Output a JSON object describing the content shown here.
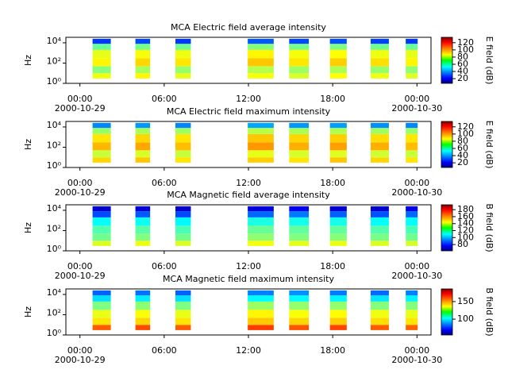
{
  "chart_data": [
    {
      "type": "spectrogram",
      "title": "MCA  Electric field average intensity",
      "y_label": "Hz",
      "colorbar_label": "E field (dB)",
      "colormap": "jet",
      "log_y": true,
      "xlim": [
        -1,
        25
      ],
      "ylim": [
        1,
        35000
      ],
      "clim": [
        7,
        135
      ],
      "xticks": [
        {
          "value": 0,
          "label": "00:00"
        },
        {
          "value": 6,
          "label": "06:00"
        },
        {
          "value": 12,
          "label": "12:00"
        },
        {
          "value": 18,
          "label": "18:00"
        },
        {
          "value": 24,
          "label": "00:00"
        }
      ],
      "date_labels": [
        {
          "value": 0,
          "label": "2000-10-29"
        },
        {
          "value": 24,
          "label": "2000-10-30"
        }
      ],
      "yticks": [
        {
          "value": 1,
          "label": "10⁰"
        },
        {
          "value": 100,
          "label": "10²"
        },
        {
          "value": 10000,
          "label": "10⁴"
        }
      ],
      "cticks": [
        20,
        40,
        60,
        80,
        100,
        120
      ],
      "bins": [
        3,
        10,
        50,
        300,
        2000,
        8000,
        25000
      ],
      "segments": [
        {
          "start": 0.9,
          "end": 2.2,
          "values": [
            85,
            72,
            88,
            84,
            68,
            30
          ]
        },
        {
          "start": 3.95,
          "end": 5.0,
          "values": [
            88,
            76,
            92,
            86,
            70,
            32
          ]
        },
        {
          "start": 6.8,
          "end": 7.9,
          "values": [
            84,
            74,
            90,
            85,
            69,
            30
          ]
        },
        {
          "start": 11.95,
          "end": 13.8,
          "values": [
            86,
            78,
            94,
            88,
            72,
            34
          ]
        },
        {
          "start": 14.9,
          "end": 16.3,
          "values": [
            82,
            75,
            90,
            86,
            70,
            32
          ]
        },
        {
          "start": 17.8,
          "end": 19.0,
          "values": [
            87,
            77,
            93,
            87,
            71,
            33
          ]
        },
        {
          "start": 20.7,
          "end": 22.0,
          "values": [
            85,
            74,
            91,
            85,
            69,
            31
          ]
        },
        {
          "start": 23.2,
          "end": 24.05,
          "values": [
            83,
            73,
            88,
            84,
            68,
            30
          ]
        }
      ]
    },
    {
      "type": "spectrogram",
      "title": "MCA  Electric field maximum intensity",
      "y_label": "Hz",
      "colorbar_label": "E field (dB)",
      "colormap": "jet",
      "log_y": true,
      "xlim": [
        -1,
        25
      ],
      "ylim": [
        1,
        35000
      ],
      "clim": [
        7,
        135
      ],
      "xticks": [
        {
          "value": 0,
          "label": "00:00"
        },
        {
          "value": 6,
          "label": "06:00"
        },
        {
          "value": 12,
          "label": "12:00"
        },
        {
          "value": 18,
          "label": "18:00"
        },
        {
          "value": 24,
          "label": "00:00"
        }
      ],
      "date_labels": [
        {
          "value": 0,
          "label": "2000-10-29"
        },
        {
          "value": 24,
          "label": "2000-10-30"
        }
      ],
      "yticks": [
        {
          "value": 1,
          "label": "10⁰"
        },
        {
          "value": 100,
          "label": "10²"
        },
        {
          "value": 10000,
          "label": "10⁴"
        }
      ],
      "cticks": [
        20,
        40,
        60,
        80,
        100,
        120
      ],
      "bins": [
        3,
        10,
        50,
        300,
        2000,
        8000,
        25000
      ],
      "segments": [
        {
          "start": 0.9,
          "end": 2.2,
          "values": [
            92,
            80,
            96,
            90,
            74,
            40
          ]
        },
        {
          "start": 3.95,
          "end": 5.0,
          "values": [
            94,
            82,
            98,
            92,
            76,
            42
          ]
        },
        {
          "start": 6.8,
          "end": 7.9,
          "values": [
            90,
            80,
            95,
            90,
            75,
            40
          ]
        },
        {
          "start": 11.95,
          "end": 13.8,
          "values": [
            93,
            84,
            100,
            94,
            78,
            44
          ]
        },
        {
          "start": 14.9,
          "end": 16.3,
          "values": [
            90,
            82,
            97,
            92,
            76,
            42
          ]
        },
        {
          "start": 17.8,
          "end": 19.0,
          "values": [
            94,
            83,
            99,
            93,
            77,
            43
          ]
        },
        {
          "start": 20.7,
          "end": 22.0,
          "values": [
            92,
            81,
            97,
            91,
            75,
            41
          ]
        },
        {
          "start": 23.2,
          "end": 24.05,
          "values": [
            90,
            80,
            95,
            90,
            74,
            40
          ]
        }
      ]
    },
    {
      "type": "spectrogram",
      "title": "MCA  Magnetic field average intensity",
      "y_label": "Hz",
      "colorbar_label": "B field (dB)",
      "colormap": "jet",
      "log_y": true,
      "xlim": [
        -1,
        25
      ],
      "ylim": [
        1,
        35000
      ],
      "clim": [
        62,
        194
      ],
      "xticks": [
        {
          "value": 0,
          "label": "00:00"
        },
        {
          "value": 6,
          "label": "06:00"
        },
        {
          "value": 12,
          "label": "12:00"
        },
        {
          "value": 18,
          "label": "18:00"
        },
        {
          "value": 24,
          "label": "00:00"
        }
      ],
      "date_labels": [
        {
          "value": 0,
          "label": "2000-10-29"
        },
        {
          "value": 24,
          "label": "2000-10-30"
        }
      ],
      "yticks": [
        {
          "value": 1,
          "label": "10⁰"
        },
        {
          "value": 100,
          "label": "10²"
        },
        {
          "value": 10000,
          "label": "10⁴"
        }
      ],
      "cticks": [
        80,
        100,
        120,
        140,
        160,
        180
      ],
      "bins": [
        3,
        10,
        50,
        300,
        2000,
        8000,
        25000
      ],
      "segments": [
        {
          "start": 0.9,
          "end": 2.2,
          "values": [
            140,
            126,
            122,
            112,
            88,
            72
          ]
        },
        {
          "start": 3.95,
          "end": 5.0,
          "values": [
            142,
            128,
            123,
            113,
            90,
            73
          ]
        },
        {
          "start": 6.8,
          "end": 7.9,
          "values": [
            140,
            126,
            121,
            111,
            88,
            72
          ]
        },
        {
          "start": 11.95,
          "end": 13.8,
          "values": [
            143,
            130,
            125,
            115,
            92,
            74
          ]
        },
        {
          "start": 14.9,
          "end": 16.3,
          "values": [
            141,
            128,
            124,
            114,
            94,
            76
          ]
        },
        {
          "start": 17.8,
          "end": 19.0,
          "values": [
            142,
            129,
            124,
            114,
            91,
            73
          ]
        },
        {
          "start": 20.7,
          "end": 22.0,
          "values": [
            140,
            127,
            122,
            112,
            89,
            72
          ]
        },
        {
          "start": 23.2,
          "end": 24.05,
          "values": [
            139,
            126,
            121,
            112,
            92,
            75
          ]
        }
      ]
    },
    {
      "type": "spectrogram",
      "title": "MCA  Magnetic field maximum intensity",
      "y_label": "Hz",
      "colorbar_label": "B field (dB)",
      "colormap": "jet",
      "log_y": true,
      "xlim": [
        -1,
        25
      ],
      "ylim": [
        1,
        35000
      ],
      "clim": [
        55,
        186
      ],
      "xticks": [
        {
          "value": 0,
          "label": "00:00"
        },
        {
          "value": 6,
          "label": "06:00"
        },
        {
          "value": 12,
          "label": "12:00"
        },
        {
          "value": 18,
          "label": "18:00"
        },
        {
          "value": 24,
          "label": "00:00"
        }
      ],
      "date_labels": [
        {
          "value": 0,
          "label": "2000-10-29"
        },
        {
          "value": 24,
          "label": "2000-10-30"
        }
      ],
      "yticks": [
        {
          "value": 1,
          "label": "10⁰"
        },
        {
          "value": 100,
          "label": "10²"
        },
        {
          "value": 10000,
          "label": "10⁴"
        }
      ],
      "cticks": [
        100,
        150
      ],
      "bins": [
        3,
        10,
        50,
        300,
        2000,
        8000,
        25000
      ],
      "segments": [
        {
          "start": 0.9,
          "end": 2.2,
          "values": [
            158,
            140,
            134,
            120,
            100,
            84
          ]
        },
        {
          "start": 3.95,
          "end": 5.0,
          "values": [
            160,
            142,
            136,
            122,
            102,
            86
          ]
        },
        {
          "start": 6.8,
          "end": 7.9,
          "values": [
            158,
            140,
            134,
            120,
            100,
            84
          ]
        },
        {
          "start": 11.95,
          "end": 13.8,
          "values": [
            162,
            144,
            138,
            124,
            104,
            88
          ]
        },
        {
          "start": 14.9,
          "end": 16.3,
          "values": [
            159,
            142,
            136,
            123,
            104,
            90
          ]
        },
        {
          "start": 17.8,
          "end": 19.0,
          "values": [
            161,
            143,
            137,
            123,
            103,
            87
          ]
        },
        {
          "start": 20.7,
          "end": 22.0,
          "values": [
            158,
            141,
            135,
            121,
            101,
            85
          ]
        },
        {
          "start": 23.2,
          "end": 24.05,
          "values": [
            157,
            140,
            134,
            121,
            103,
            88
          ]
        }
      ]
    }
  ]
}
